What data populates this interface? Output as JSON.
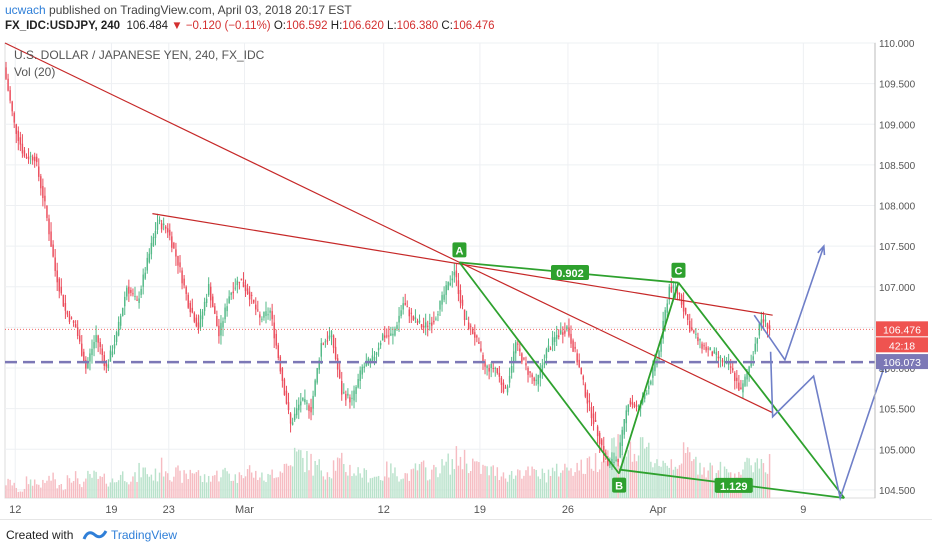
{
  "header": {
    "username": "ucwach",
    "published_text": "published on TradingView.com, April 03, 2018 20:17 EST",
    "symbol": "FX_IDC:USDJPY, 240",
    "last": "106.484",
    "change": "−0.120 (−0.11%)",
    "open_label": "O:",
    "open": "106.592",
    "high_label": "H:",
    "high": "106.620",
    "low_label": "L:",
    "low": "106.380",
    "close_label": "C:",
    "close": "106.476"
  },
  "chart": {
    "title": "U.S. DOLLAR / JAPANESE YEN, 240, FX_IDC",
    "vol_label": "Vol (20)",
    "current_price_label": "106.476",
    "countdown_label": "42:18",
    "line_price_label": "106.073",
    "label_a": "A",
    "label_b": "B",
    "label_c": "C",
    "ratio_top": "0.902",
    "ratio_bottom": "1.129",
    "colors": {
      "up": "#53b987",
      "down": "#eb4d5c",
      "trend": "#c62828",
      "pattern": "#2ea12e",
      "projection": "#6f7fc8",
      "hline": "#7c78b6",
      "price_tag": "#ef5350"
    }
  },
  "chart_data": {
    "type": "candlestick",
    "title": "U.S. DOLLAR / JAPANESE YEN, 240, FX_IDC",
    "ylim": [
      104.4,
      110.0
    ],
    "y_ticks": [
      "110.000",
      "109.500",
      "109.000",
      "108.500",
      "108.000",
      "107.500",
      "107.000",
      "106.500",
      "106.000",
      "105.500",
      "105.000",
      "104.500"
    ],
    "y_tick_values": [
      110.0,
      109.5,
      109.0,
      108.5,
      108.0,
      107.5,
      107.0,
      106.5,
      106.0,
      105.5,
      105.0,
      104.5
    ],
    "x_ticks": [
      "12",
      "19",
      "23",
      "Mar",
      "12",
      "19",
      "26",
      "Apr",
      "9"
    ],
    "x_tick_pos": [
      5,
      52,
      80,
      117,
      185,
      232,
      275,
      319,
      390
    ],
    "x_range": [
      0,
      425
    ],
    "price_path": [
      [
        0,
        109.7
      ],
      [
        5,
        109.0
      ],
      [
        10,
        108.6
      ],
      [
        15,
        108.6
      ],
      [
        20,
        108.0
      ],
      [
        25,
        107.2
      ],
      [
        30,
        106.7
      ],
      [
        35,
        106.5
      ],
      [
        40,
        106.0
      ],
      [
        45,
        106.4
      ],
      [
        50,
        106.0
      ],
      [
        55,
        106.4
      ],
      [
        60,
        107.0
      ],
      [
        65,
        106.8
      ],
      [
        70,
        107.3
      ],
      [
        75,
        107.8
      ],
      [
        80,
        107.7
      ],
      [
        85,
        107.3
      ],
      [
        90,
        106.8
      ],
      [
        95,
        106.5
      ],
      [
        100,
        107.0
      ],
      [
        105,
        106.4
      ],
      [
        110,
        106.9
      ],
      [
        115,
        107.1
      ],
      [
        120,
        106.9
      ],
      [
        125,
        106.6
      ],
      [
        130,
        106.7
      ],
      [
        135,
        106.0
      ],
      [
        140,
        105.3
      ],
      [
        145,
        105.6
      ],
      [
        150,
        105.5
      ],
      [
        155,
        106.3
      ],
      [
        160,
        106.4
      ],
      [
        165,
        105.7
      ],
      [
        170,
        105.6
      ],
      [
        175,
        106.0
      ],
      [
        180,
        106.1
      ],
      [
        185,
        106.4
      ],
      [
        190,
        106.4
      ],
      [
        195,
        106.8
      ],
      [
        200,
        106.6
      ],
      [
        205,
        106.5
      ],
      [
        210,
        106.6
      ],
      [
        215,
        106.9
      ],
      [
        220,
        107.2
      ],
      [
        225,
        106.6
      ],
      [
        230,
        106.4
      ],
      [
        235,
        106.0
      ],
      [
        240,
        106.0
      ],
      [
        245,
        105.7
      ],
      [
        250,
        106.3
      ],
      [
        255,
        106.0
      ],
      [
        260,
        105.8
      ],
      [
        265,
        106.2
      ],
      [
        270,
        106.4
      ],
      [
        275,
        106.5
      ],
      [
        280,
        106.1
      ],
      [
        285,
        105.6
      ],
      [
        290,
        105.2
      ],
      [
        295,
        104.8
      ],
      [
        300,
        104.9
      ],
      [
        305,
        105.6
      ],
      [
        310,
        105.5
      ],
      [
        315,
        105.8
      ],
      [
        320,
        106.2
      ],
      [
        325,
        107.0
      ],
      [
        330,
        106.9
      ],
      [
        335,
        106.5
      ],
      [
        340,
        106.3
      ],
      [
        345,
        106.2
      ],
      [
        350,
        106.1
      ],
      [
        355,
        106.0
      ],
      [
        360,
        105.7
      ],
      [
        365,
        106.1
      ],
      [
        370,
        106.6
      ],
      [
        374,
        106.5
      ]
    ],
    "volume_level": [
      0.2,
      0.1,
      0.22,
      0.18,
      0.25,
      0.15,
      0.3,
      0.2,
      0.28,
      0.24,
      0.22,
      0.3,
      0.26,
      0.35,
      0.3,
      0.4,
      0.32,
      0.28,
      0.36,
      0.25,
      0.3,
      0.33,
      0.27,
      0.38,
      0.3,
      0.26,
      0.35,
      0.42,
      0.55,
      0.48,
      0.4,
      0.36,
      0.45,
      0.38,
      0.34,
      0.3,
      0.28,
      0.36,
      0.32,
      0.3,
      0.38,
      0.34,
      0.4,
      0.45,
      0.52,
      0.46,
      0.38,
      0.35,
      0.33,
      0.3,
      0.36,
      0.32,
      0.3,
      0.34,
      0.38,
      0.42,
      0.4,
      0.48,
      0.56,
      0.7,
      0.62,
      0.58,
      0.6,
      0.5,
      0.46,
      0.48,
      0.55,
      0.45,
      0.4,
      0.36,
      0.33,
      0.35,
      0.4,
      0.48,
      0.46
    ],
    "current_price": 106.476,
    "hline_price": 106.073,
    "points": {
      "A": {
        "x": 222,
        "y": 107.3
      },
      "B": {
        "x": 300,
        "y": 104.7
      },
      "C": {
        "x": 329,
        "y": 107.05
      }
    },
    "pattern_lines": [
      [
        [
          222,
          107.3
        ],
        [
          300,
          104.7
        ]
      ],
      [
        [
          300,
          104.7
        ],
        [
          329,
          107.05
        ]
      ],
      [
        [
          329,
          107.05
        ],
        [
          410,
          104.4
        ]
      ],
      [
        [
          222,
          107.3
        ],
        [
          329,
          107.05
        ]
      ],
      [
        [
          300,
          104.75
        ],
        [
          410,
          104.4
        ]
      ]
    ],
    "trend_lines": [
      [
        [
          0,
          110.0
        ],
        [
          222,
          107.3
        ]
      ],
      [
        [
          72,
          107.9
        ],
        [
          375,
          106.65
        ]
      ],
      [
        [
          222,
          107.3
        ],
        [
          375,
          105.45
        ]
      ]
    ],
    "projection_path": [
      [
        366,
        106.65
      ],
      [
        381,
        106.1
      ],
      [
        400,
        107.5
      ]
    ],
    "projection_path_2": [
      [
        374,
        106.2
      ],
      [
        375,
        105.4
      ],
      [
        395,
        105.9
      ],
      [
        408,
        104.4
      ],
      [
        430,
        106.05
      ]
    ],
    "ratios": {
      "AC_vs_AB": "0.902",
      "BD_vs_BC": "1.129"
    }
  }
}
